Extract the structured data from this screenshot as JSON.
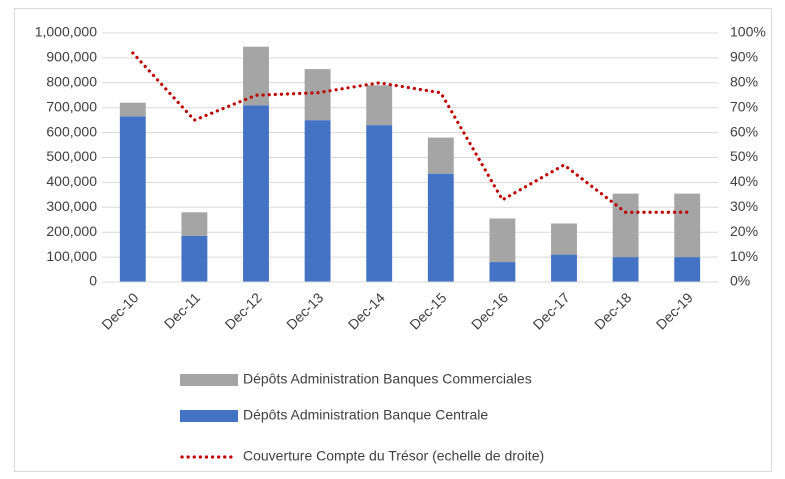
{
  "chart_data": {
    "type": "bar",
    "categories": [
      "Dec-10",
      "Dec-11",
      "Dec-12",
      "Dec-13",
      "Dec-14",
      "Dec-15",
      "Dec-16",
      "Dec-17",
      "Dec-18",
      "Dec-19"
    ],
    "series": [
      {
        "name": "Dépôts Administration Banques Commerciales",
        "color": "#a5a5a5",
        "stacked": true,
        "values": [
          55000,
          95000,
          235000,
          205000,
          160000,
          145000,
          175000,
          125000,
          255000,
          255000
        ]
      },
      {
        "name": "Dépôts Administration Banque Centrale",
        "color": "#4472c4",
        "stacked": true,
        "values": [
          665000,
          185000,
          710000,
          650000,
          630000,
          435000,
          80000,
          110000,
          100000,
          100000
        ]
      },
      {
        "name": "Couverture Compte du Trésor (echelle de droite)",
        "color": "#c00000",
        "type": "line",
        "axis": "y2",
        "dashed": true,
        "values": [
          92,
          65,
          75,
          76,
          80,
          76,
          33,
          47,
          28,
          28
        ]
      }
    ],
    "ylim": [
      0,
      1000000
    ],
    "yticks": [
      0,
      {
        "value": 100000,
        "label": "100,000"
      },
      {
        "value": 200000,
        "label": "200,000"
      },
      {
        "value": 300000,
        "label": "300,000"
      },
      {
        "value": 400000,
        "label": "400,000"
      },
      {
        "value": 500000,
        "label": "500,000"
      },
      {
        "value": 600000,
        "label": "600,000"
      },
      {
        "value": 700000,
        "label": "700,000"
      },
      {
        "value": 800000,
        "label": "800,000"
      },
      {
        "value": 900000,
        "label": "900,000"
      },
      {
        "value": 1000000,
        "label": "1,000,000"
      }
    ],
    "y2lim": [
      0,
      100
    ],
    "y2ticks": [
      {
        "value": 0,
        "label": "0%"
      },
      {
        "value": 10,
        "label": "10%"
      },
      {
        "value": 20,
        "label": "20%"
      },
      {
        "value": 30,
        "label": "30%"
      },
      {
        "value": 40,
        "label": "40%"
      },
      {
        "value": 50,
        "label": "50%"
      },
      {
        "value": 60,
        "label": "60%"
      },
      {
        "value": 70,
        "label": "70%"
      },
      {
        "value": 80,
        "label": "80%"
      },
      {
        "value": 90,
        "label": "90%"
      },
      {
        "value": 100,
        "label": "100%"
      }
    ],
    "grid": true,
    "legend": "bottom"
  }
}
